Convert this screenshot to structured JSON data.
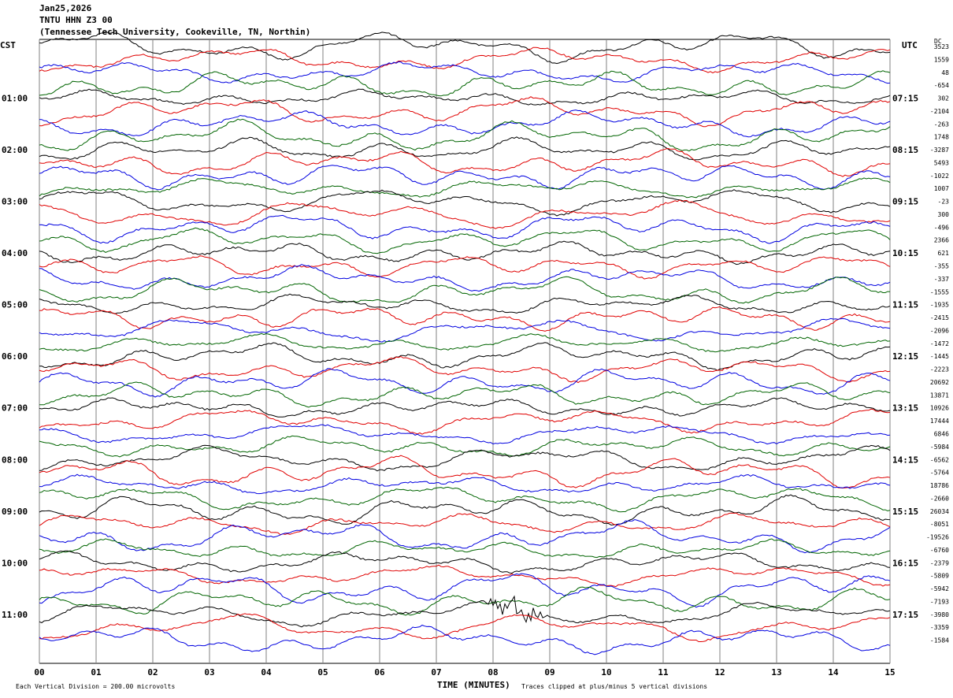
{
  "header": {
    "date": "Jan25,2026",
    "station": "TNTU HHN Z3 00",
    "location": "(Tennessee Tech University, Cookeville, TN, Northin)"
  },
  "left_axis_title": "CST",
  "right_axis_title": "UTC",
  "dc_title": "DC",
  "footer": {
    "scale_note": "Each Vertical Division = 200.00 microvolts",
    "xlabel": "TIME (MINUTES)",
    "clip_note": "Traces clipped at plus/minus 5 vertical divisions"
  },
  "colors": {
    "black": "#000000",
    "red": "#e00000",
    "blue": "#0000e0",
    "green": "#006400",
    "grid": "#808080"
  },
  "chart_data": {
    "type": "line",
    "title": "TNTU HHN Z3 00",
    "xlabel": "TIME (MINUTES)",
    "xlim": [
      0,
      15
    ],
    "x_ticks": [
      "00",
      "01",
      "02",
      "03",
      "04",
      "05",
      "06",
      "07",
      "08",
      "09",
      "10",
      "11",
      "12",
      "13",
      "14",
      "15"
    ],
    "rows_per_hour": 4,
    "minutes_per_row": 15,
    "trace_color_cycle": [
      "black",
      "red",
      "blue",
      "green"
    ],
    "left_time_labels": [
      "01:00",
      "02:00",
      "03:00",
      "04:00",
      "05:00",
      "06:00",
      "07:00",
      "08:00",
      "09:00",
      "10:00",
      "11:00"
    ],
    "right_time_labels": [
      "07:15",
      "08:15",
      "09:15",
      "10:15",
      "11:15",
      "12:15",
      "13:15",
      "14:15",
      "15:15",
      "16:15",
      "17:15"
    ],
    "dc_offsets": [
      "3523",
      "1559",
      "48",
      "-654",
      "302",
      "-2104",
      "-263",
      "1748",
      "-3287",
      "5493",
      "-1022",
      "1007",
      "-23",
      "300",
      "-496",
      "2366",
      "621",
      "-355",
      "-337",
      "-1555",
      "-1935",
      "-2415",
      "-2096",
      "-1472",
      "-1445",
      "-2223",
      "20692",
      "13871",
      "10926",
      "17444",
      "6846",
      "-5984",
      "-6562",
      "-5764",
      "18786",
      "-2660",
      "26034",
      "-8051",
      "-19526",
      "-6760",
      "-2379",
      "-5809",
      "-5942",
      "-7193",
      "-3980",
      "-3359",
      "-1584"
    ],
    "events": [
      {
        "label": "local event burst",
        "row_index": 44,
        "minute": 8.4
      }
    ]
  }
}
